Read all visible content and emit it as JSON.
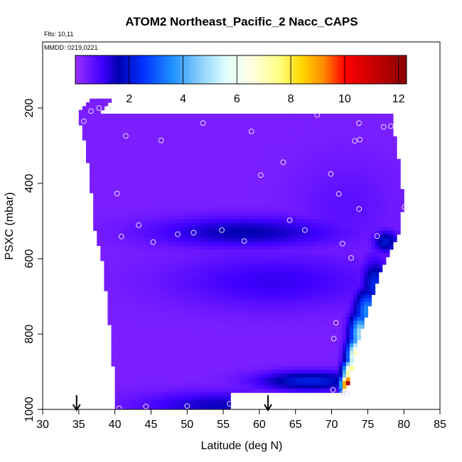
{
  "chart_data": {
    "type": "heatmap",
    "title": "ATOM2 Northeast_Pacific_2 Nacc_CAPS",
    "annotations": [
      "Flts: 10,11",
      "MMDD: 0219,0221"
    ],
    "xlabel": "Latitude (deg N)",
    "ylabel": "PSXC (mbar)",
    "xlim": [
      30,
      85
    ],
    "ylim": [
      1000,
      0
    ],
    "y_inverted": true,
    "x_ticks": [
      30,
      35,
      40,
      45,
      50,
      55,
      60,
      65,
      70,
      75,
      80,
      85
    ],
    "y_ticks": [
      200,
      400,
      600,
      800,
      1000
    ],
    "colorbar": {
      "range": [
        0,
        12.3
      ],
      "ticks": [
        2,
        4,
        6,
        8,
        10,
        12
      ],
      "stops": [
        [
          0.0,
          "#9b30ff"
        ],
        [
          1.0,
          "#4000ff"
        ],
        [
          1.6,
          "#0000b0"
        ],
        [
          2.5,
          "#0030ff"
        ],
        [
          3.6,
          "#1e90ff"
        ],
        [
          4.6,
          "#87cefa"
        ],
        [
          5.6,
          "#e0ffff"
        ],
        [
          6.6,
          "#ffffe0"
        ],
        [
          7.6,
          "#ffff80"
        ],
        [
          8.4,
          "#ffd700"
        ],
        [
          9.2,
          "#ff8c00"
        ],
        [
          10.0,
          "#ff0000"
        ],
        [
          11.0,
          "#cc0000"
        ],
        [
          12.3,
          "#8b0000"
        ]
      ]
    },
    "grid": false,
    "legend": "colorbar-top",
    "arrows_lat": [
      34.7,
      61.2
    ],
    "envelope_lat_min": [
      [
        175,
        36.5
      ],
      [
        215,
        34.8
      ],
      [
        290,
        35.8
      ],
      [
        380,
        36.6
      ],
      [
        470,
        36.9
      ],
      [
        530,
        37.3
      ],
      [
        600,
        38.2
      ],
      [
        680,
        38.7
      ],
      [
        760,
        39.2
      ],
      [
        850,
        39.6
      ],
      [
        940,
        40.0
      ],
      [
        1000,
        40.0
      ]
    ],
    "envelope_lat_max": [
      [
        215,
        78.4
      ],
      [
        280,
        78.8
      ],
      [
        360,
        79.5
      ],
      [
        450,
        79.9
      ],
      [
        520,
        79.5
      ],
      [
        570,
        78.3
      ],
      [
        620,
        77.0
      ],
      [
        700,
        75.7
      ],
      [
        760,
        74.6
      ],
      [
        820,
        73.6
      ],
      [
        880,
        72.9
      ],
      [
        950,
        72.0
      ],
      [
        960,
        72.0
      ]
    ],
    "envelope_bottom_right": [
      [
        55.9,
        990
      ],
      [
        55.9,
        960
      ],
      [
        72.0,
        960
      ]
    ],
    "high_features": [
      {
        "lat": 58.0,
        "p": 530,
        "value": 1.6,
        "sig_lat": 9,
        "sig_p": 28
      },
      {
        "lat": 55.0,
        "p": 990,
        "value": 1.5,
        "sig_lat": 8,
        "sig_p": 25
      },
      {
        "lat": 62.0,
        "p": 660,
        "value": 1.1,
        "sig_lat": 10,
        "sig_p": 50
      },
      {
        "lat": 72.0,
        "p": 460,
        "value": 0.7,
        "sig_lat": 5,
        "sig_p": 90
      },
      {
        "lat": 77.5,
        "p": 555,
        "value": 2.0,
        "sig_lat": 1.2,
        "sig_p": 20
      },
      {
        "lat": 76.0,
        "p": 670,
        "value": 2.3,
        "sig_lat": 1.2,
        "sig_p": 45
      },
      {
        "lat": 75.0,
        "p": 740,
        "value": 3.6,
        "sig_lat": 1.2,
        "sig_p": 40
      },
      {
        "lat": 74.0,
        "p": 800,
        "value": 5.0,
        "sig_lat": 1.0,
        "sig_p": 40
      },
      {
        "lat": 73.5,
        "p": 860,
        "value": 7.5,
        "sig_lat": 0.9,
        "sig_p": 35
      },
      {
        "lat": 72.8,
        "p": 905,
        "value": 9.0,
        "sig_lat": 0.8,
        "sig_p": 25
      },
      {
        "lat": 72.2,
        "p": 935,
        "value": 12.0,
        "sig_lat": 0.6,
        "sig_p": 20
      },
      {
        "lat": 67.0,
        "p": 925,
        "value": 2.2,
        "sig_lat": 5,
        "sig_p": 18
      }
    ],
    "samples": [
      [
        35.7,
        235
      ],
      [
        36.7,
        208
      ],
      [
        37.8,
        200
      ],
      [
        39.0,
        201
      ],
      [
        52.2,
        240
      ],
      [
        68.0,
        218
      ],
      [
        73.8,
        240
      ],
      [
        77.2,
        250
      ],
      [
        78.2,
        248
      ],
      [
        41.5,
        274
      ],
      [
        46.4,
        286
      ],
      [
        58.9,
        262
      ],
      [
        73.2,
        287
      ],
      [
        73.9,
        284
      ],
      [
        63.3,
        344
      ],
      [
        60.2,
        378
      ],
      [
        69.9,
        375
      ],
      [
        71.0,
        428
      ],
      [
        73.8,
        468
      ],
      [
        80.1,
        463
      ],
      [
        40.3,
        427
      ],
      [
        43.3,
        511
      ],
      [
        64.2,
        498
      ],
      [
        66.3,
        524
      ],
      [
        40.9,
        541
      ],
      [
        45.3,
        556
      ],
      [
        48.7,
        535
      ],
      [
        50.9,
        531
      ],
      [
        54.8,
        524
      ],
      [
        57.9,
        553
      ],
      [
        71.5,
        560
      ],
      [
        76.3,
        540
      ],
      [
        72.7,
        598
      ],
      [
        70.6,
        770
      ],
      [
        70.3,
        812
      ],
      [
        70.2,
        948
      ],
      [
        71.6,
        956
      ],
      [
        72.1,
        958
      ],
      [
        40.6,
        997
      ],
      [
        44.3,
        992
      ],
      [
        50.0,
        991
      ],
      [
        55.9,
        985
      ]
    ]
  }
}
